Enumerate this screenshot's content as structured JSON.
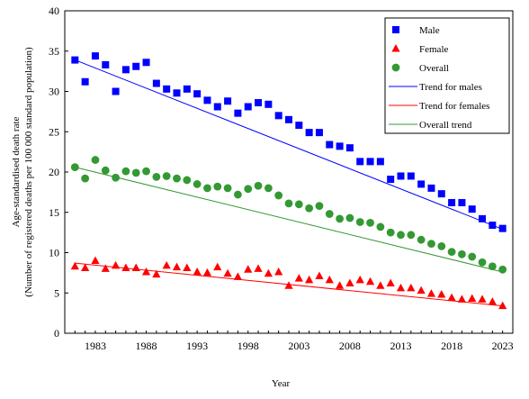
{
  "chart_data": {
    "type": "scatter",
    "xlabel": "Year",
    "ylabel_lines": [
      "Age-standardised death rate",
      "(Number of registered deaths per 100 000 standard population)"
    ],
    "xlim": [
      1980,
      2024
    ],
    "ylim": [
      0,
      40
    ],
    "x_ticks": [
      1983,
      1988,
      1993,
      1998,
      2003,
      2008,
      2013,
      2018,
      2023
    ],
    "y_ticks": [
      0,
      5,
      10,
      15,
      20,
      25,
      30,
      35,
      40
    ],
    "grid": false,
    "legend_position": "top-right",
    "x": [
      1981,
      1982,
      1983,
      1984,
      1985,
      1986,
      1987,
      1988,
      1989,
      1990,
      1991,
      1992,
      1993,
      1994,
      1995,
      1996,
      1997,
      1998,
      1999,
      2000,
      2001,
      2002,
      2003,
      2004,
      2005,
      2006,
      2007,
      2008,
      2009,
      2010,
      2011,
      2012,
      2013,
      2014,
      2015,
      2016,
      2017,
      2018,
      2019,
      2020,
      2021,
      2022,
      2023
    ],
    "series": [
      {
        "name": "Male",
        "marker": "square",
        "color": "#0000ff",
        "values": [
          33.9,
          31.2,
          34.4,
          33.3,
          30.0,
          32.7,
          33.1,
          33.6,
          31.0,
          30.3,
          29.8,
          30.3,
          29.7,
          28.9,
          28.1,
          28.8,
          27.3,
          28.1,
          28.6,
          28.4,
          27.0,
          26.5,
          25.8,
          24.9,
          24.9,
          23.4,
          23.2,
          23.0,
          21.3,
          21.3,
          21.3,
          19.1,
          19.5,
          19.5,
          18.5,
          18.0,
          17.3,
          16.2,
          16.2,
          15.4,
          14.2,
          13.4,
          13.0
        ]
      },
      {
        "name": "Female",
        "marker": "triangle",
        "color": "#ff0000",
        "values": [
          8.3,
          8.1,
          9.0,
          8.0,
          8.4,
          8.1,
          8.1,
          7.6,
          7.3,
          8.4,
          8.2,
          8.1,
          7.6,
          7.5,
          8.2,
          7.4,
          7.0,
          7.9,
          8.0,
          7.4,
          7.6,
          5.9,
          6.8,
          6.6,
          7.1,
          6.6,
          5.9,
          6.2,
          6.6,
          6.4,
          5.9,
          6.2,
          5.6,
          5.6,
          5.3,
          4.9,
          4.8,
          4.4,
          4.2,
          4.3,
          4.2,
          3.9,
          3.4
        ]
      },
      {
        "name": "Overall",
        "marker": "circle",
        "color": "#339933",
        "values": [
          20.6,
          19.2,
          21.5,
          20.2,
          19.3,
          20.1,
          19.9,
          20.1,
          19.4,
          19.5,
          19.2,
          19.0,
          18.5,
          18.0,
          18.2,
          18.0,
          17.2,
          17.9,
          18.3,
          18.0,
          17.1,
          16.1,
          16.0,
          15.5,
          15.8,
          14.8,
          14.2,
          14.3,
          13.8,
          13.7,
          13.2,
          12.5,
          12.2,
          12.2,
          11.6,
          11.1,
          10.8,
          10.1,
          9.8,
          9.5,
          8.8,
          8.3,
          7.9
        ]
      }
    ],
    "trend_lines": [
      {
        "name": "Trend for males",
        "color": "#0000ff",
        "x": [
          1981,
          2023
        ],
        "y": [
          33.9,
          12.9
        ]
      },
      {
        "name": "Trend for females",
        "color": "#ff0000",
        "x": [
          1981,
          2023
        ],
        "y": [
          8.7,
          3.4
        ]
      },
      {
        "name": "Overall trend",
        "color": "#339933",
        "x": [
          1981,
          2023
        ],
        "y": [
          20.6,
          7.6
        ]
      }
    ]
  }
}
